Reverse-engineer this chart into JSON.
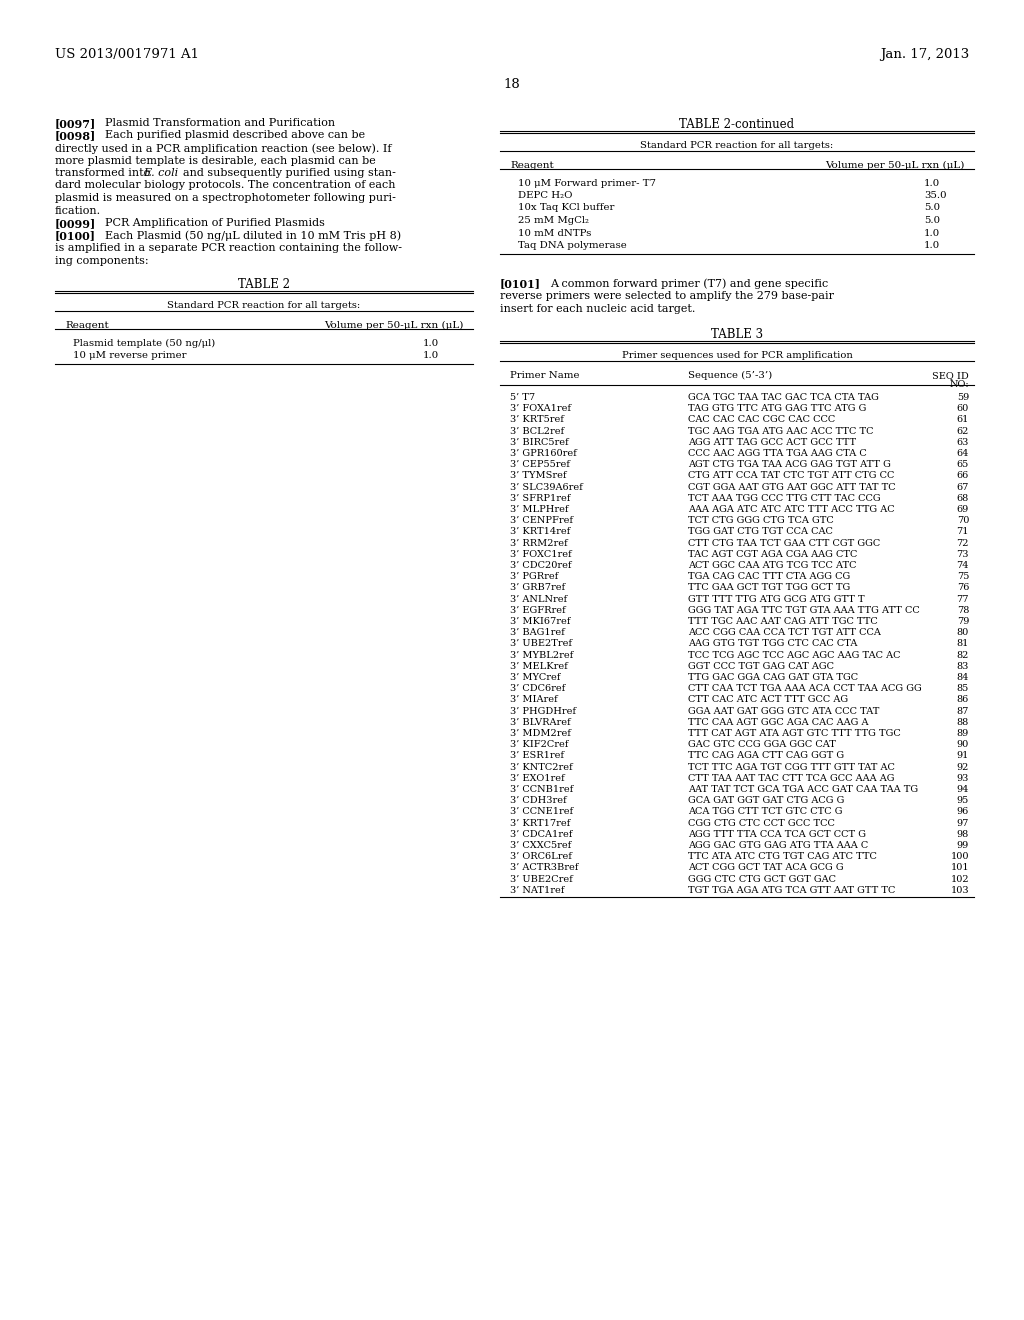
{
  "header_left": "US 2013/0017971 A1",
  "header_right": "Jan. 17, 2013",
  "page_number": "18",
  "background_color": "#ffffff",
  "table2_title": "TABLE 2",
  "table2_subtitle": "Standard PCR reaction for all targets:",
  "table2_col1": "Reagent",
  "table2_col2": "Volume per 50-μL rxn (μL)",
  "table2_rows": [
    [
      "Plasmid template (50 ng/μl)",
      "1.0"
    ],
    [
      "10 μM reverse primer",
      "1.0"
    ]
  ],
  "table2cont_title": "TABLE 2-continued",
  "table2cont_subtitle": "Standard PCR reaction for all targets:",
  "table2cont_col1": "Reagent",
  "table2cont_col2": "Volume per 50-μL rxn (μL)",
  "table2cont_rows": [
    [
      "10 μM Forward primer- T7",
      "1.0"
    ],
    [
      "DEPC H₂O",
      "35.0"
    ],
    [
      "10x Taq KCl buffer",
      "5.0"
    ],
    [
      "25 mM MgCl₂",
      "5.0"
    ],
    [
      "10 mM dNTPs",
      "1.0"
    ],
    [
      "Taq DNA polymerase",
      "1.0"
    ]
  ],
  "table3_title": "TABLE 3",
  "table3_subtitle": "Primer sequences used for PCR amplification",
  "table3_col1": "Primer Name",
  "table3_col2": "Sequence (5’-3’)",
  "table3_col3_line1": "SEQ ID",
  "table3_col3_line2": "NO:",
  "table3_rows": [
    [
      "5’ T7",
      "GCA TGC TAA TAC GAC TCA CTA TAG",
      "59"
    ],
    [
      "3’ FOXA1ref",
      "TAG GTG TTC ATG GAG TTC ATG G",
      "60"
    ],
    [
      "3’ KRT5ref",
      "CAC CAC CAC CGC CAC CCC",
      "61"
    ],
    [
      "3’ BCL2ref",
      "TGC AAG TGA ATG AAC ACC TTC TC",
      "62"
    ],
    [
      "3’ BIRC5ref",
      "AGG ATT TAG GCC ACT GCC TTT",
      "63"
    ],
    [
      "3’ GPR160ref",
      "CCC AAC AGG TTA TGA AAG CTA C",
      "64"
    ],
    [
      "3’ CEP55ref",
      "AGT CTG TGA TAA ACG GAG TGT ATT G",
      "65"
    ],
    [
      "3’ TYMSref",
      "CTG ATT CCA TAT CTC TGT ATT CTG CC",
      "66"
    ],
    [
      "3’ SLC39A6ref",
      "CGT GGA AAT GTG AAT GGC ATT TAT TC",
      "67"
    ],
    [
      "3’ SFRP1ref",
      "TCT AAA TGG CCC TTG CTT TAC CCG",
      "68"
    ],
    [
      "3’ MLPHref",
      "AAA AGA ATC ATC ATC TTT ACC TTG AC",
      "69"
    ],
    [
      "3’ CENPFref",
      "TCT CTG GGG CTG TCA GTC",
      "70"
    ],
    [
      "3’ KRT14ref",
      "TGG GAT CTG TGT CCA CAC",
      "71"
    ],
    [
      "3’ RRM2ref",
      "CTT CTG TAA TCT GAA CTT CGT GGC",
      "72"
    ],
    [
      "3’ FOXC1ref",
      "TAC AGT CGT AGA CGA AAG CTC",
      "73"
    ],
    [
      "3’ CDC20ref",
      "ACT GGC CAA ATG TCG TCC ATC",
      "74"
    ],
    [
      "3’ PGRref",
      "TGA CAG CAC TTT CTA AGG CG",
      "75"
    ],
    [
      "3’ GRB7ref",
      "TTC GAA GCT TGT TGG GCT TG",
      "76"
    ],
    [
      "3’ ANLNref",
      "GTT TTT TTG ATG GCG ATG GTT T",
      "77"
    ],
    [
      "3’ EGFRref",
      "GGG TAT AGA TTC TGT GTA AAA TTG ATT CC",
      "78"
    ],
    [
      "3’ MKI67ref",
      "TTT TGC AAC AAT CAG ATT TGC TTC",
      "79"
    ],
    [
      "3’ BAG1ref",
      "ACC CGG CAA CCA TCT TGT ATT CCA",
      "80"
    ],
    [
      "3’ UBE2Tref",
      "AAG GTG TGT TGG CTC CAC CTA",
      "81"
    ],
    [
      "3’ MYBL2ref",
      "TCC TCG AGC TCC AGC AGC AAG TAC AC",
      "82"
    ],
    [
      "3’ MELKref",
      "GGT CCC TGT GAG CAT AGC",
      "83"
    ],
    [
      "3’ MYCref",
      "TTG GAC GGA CAG GAT GTA TGC",
      "84"
    ],
    [
      "3’ CDC6ref",
      "CTT CAA TCT TGA AAA ACA CCT TAA ACG GG",
      "85"
    ],
    [
      "3’ MIAref",
      "CTT CAC ATC ACT TTT GCC AG",
      "86"
    ],
    [
      "3’ PHGDHref",
      "GGA AAT GAT GGG GTC ATA CCC TAT",
      "87"
    ],
    [
      "3’ BLVRAref",
      "TTC CAA AGT GGC AGA CAC AAG A",
      "88"
    ],
    [
      "3’ MDM2ref",
      "TTT CAT AGT ATA AGT GTC TTT TTG TGC",
      "89"
    ],
    [
      "3’ KIF2Cref",
      "GAC GTC CCG GGA GGC CAT",
      "90"
    ],
    [
      "3’ ESR1ref",
      "TTC CAG AGA CTT CAG GGT G",
      "91"
    ],
    [
      "3’ KNTC2ref",
      "TCT TTC AGA TGT CGG TTT GTT TAT AC",
      "92"
    ],
    [
      "3’ EXO1ref",
      "CTT TAA AAT TAC CTT TCA GCC AAA AG",
      "93"
    ],
    [
      "3’ CCNB1ref",
      "AAT TAT TCT GCA TGA ACC GAT CAA TAA TG",
      "94"
    ],
    [
      "3’ CDH3ref",
      "GCA GAT GGT GAT CTG ACG G",
      "95"
    ],
    [
      "3’ CCNE1ref",
      "ACA TGG CTT TCT GTC CTC G",
      "96"
    ],
    [
      "3’ KRT17ref",
      "CGG CTG CTC CCT GCC TCC",
      "97"
    ],
    [
      "3’ CDCA1ref",
      "AGG TTT TTA CCA TCA GCT CCT G",
      "98"
    ],
    [
      "3’ CXXC5ref",
      "AGG GAC GTG GAG ATG TTA AAA C",
      "99"
    ],
    [
      "3’ ORC6Lref",
      "TTC ATA ATC CTG TGT CAG ATC TTC",
      "100"
    ],
    [
      "3’ ACTR3Bref",
      "ACT CGG GCT TAT ACA GCG G",
      "101"
    ],
    [
      "3’ UBE2Cref",
      "GGG CTC CTG GCT GGT GAC",
      "102"
    ],
    [
      "3’ NAT1ref",
      "TGT TGA AGA ATG TCA GTT AAT GTT TC",
      "103"
    ]
  ]
}
